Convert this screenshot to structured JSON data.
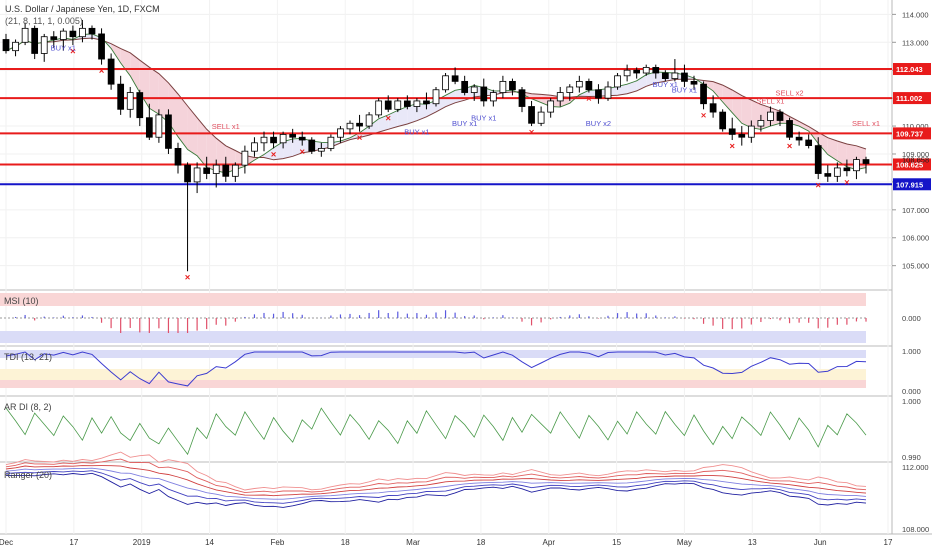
{
  "chart_data": {
    "type": "candlestick",
    "title": "U.S. Dollar / Japanese Yen, 1D, FXCM",
    "subtitle": "(21, 8, 11, 1, 0.005)",
    "x_ticks": [
      "Dec",
      "17",
      "2019",
      "14",
      "Feb",
      "18",
      "Mar",
      "18",
      "Apr",
      "15",
      "May",
      "13",
      "Jun",
      "17"
    ],
    "y_ticks": [
      "114.000",
      "113.000",
      "112.000",
      "111.000",
      "110.000",
      "109.000",
      "108.000",
      "107.000",
      "106.000",
      "105.000"
    ],
    "ylim": [
      104.2,
      114.3
    ],
    "candles": [
      [
        113.1,
        113.3,
        112.6,
        112.7
      ],
      [
        112.7,
        113.1,
        112.5,
        113.0
      ],
      [
        113.0,
        113.7,
        112.9,
        113.5
      ],
      [
        113.5,
        113.6,
        112.4,
        112.6
      ],
      [
        112.6,
        113.3,
        112.3,
        113.2
      ],
      [
        113.2,
        113.4,
        112.8,
        113.1
      ],
      [
        113.1,
        113.5,
        112.7,
        113.4
      ],
      [
        113.4,
        113.6,
        112.9,
        113.2
      ],
      [
        113.2,
        113.8,
        113.0,
        113.5
      ],
      [
        113.5,
        113.6,
        113.1,
        113.3
      ],
      [
        113.3,
        113.5,
        112.2,
        112.4
      ],
      [
        112.4,
        112.6,
        111.3,
        111.5
      ],
      [
        111.5,
        111.8,
        110.4,
        110.6
      ],
      [
        110.6,
        111.4,
        110.3,
        111.2
      ],
      [
        111.2,
        111.3,
        110.0,
        110.3
      ],
      [
        110.3,
        110.8,
        109.5,
        109.6
      ],
      [
        109.6,
        110.6,
        109.4,
        110.4
      ],
      [
        110.4,
        110.6,
        109.0,
        109.2
      ],
      [
        109.2,
        109.4,
        108.3,
        108.6
      ],
      [
        108.6,
        108.7,
        104.8,
        108.0
      ],
      [
        108.0,
        108.7,
        107.6,
        108.5
      ],
      [
        108.5,
        108.9,
        108.1,
        108.3
      ],
      [
        108.3,
        108.8,
        107.8,
        108.6
      ],
      [
        108.6,
        108.9,
        108.0,
        108.2
      ],
      [
        108.2,
        108.7,
        108.0,
        108.6
      ],
      [
        108.6,
        109.3,
        108.3,
        109.1
      ],
      [
        109.1,
        109.6,
        108.9,
        109.4
      ],
      [
        109.4,
        109.8,
        109.1,
        109.6
      ],
      [
        109.6,
        109.8,
        109.2,
        109.4
      ],
      [
        109.4,
        109.8,
        109.2,
        109.7
      ],
      [
        109.7,
        109.9,
        109.4,
        109.6
      ],
      [
        109.6,
        109.8,
        109.3,
        109.5
      ],
      [
        109.5,
        109.6,
        109.0,
        109.1
      ],
      [
        109.1,
        109.4,
        108.9,
        109.2
      ],
      [
        109.2,
        109.7,
        109.1,
        109.6
      ],
      [
        109.6,
        110.0,
        109.4,
        109.9
      ],
      [
        109.9,
        110.2,
        109.7,
        110.1
      ],
      [
        110.1,
        110.4,
        109.8,
        110.0
      ],
      [
        110.0,
        110.5,
        109.9,
        110.4
      ],
      [
        110.4,
        111.0,
        110.3,
        110.9
      ],
      [
        110.9,
        111.1,
        110.5,
        110.6
      ],
      [
        110.6,
        111.0,
        110.5,
        110.9
      ],
      [
        110.9,
        111.1,
        110.6,
        110.7
      ],
      [
        110.7,
        111.0,
        110.5,
        110.9
      ],
      [
        110.9,
        111.2,
        110.6,
        110.8
      ],
      [
        110.8,
        111.4,
        110.7,
        111.3
      ],
      [
        111.3,
        111.9,
        111.2,
        111.8
      ],
      [
        111.8,
        112.1,
        111.5,
        111.6
      ],
      [
        111.6,
        111.8,
        111.1,
        111.2
      ],
      [
        111.2,
        111.5,
        110.9,
        111.4
      ],
      [
        111.4,
        111.7,
        110.7,
        110.9
      ],
      [
        110.9,
        111.3,
        110.7,
        111.2
      ],
      [
        111.2,
        111.8,
        111.0,
        111.6
      ],
      [
        111.6,
        111.7,
        111.1,
        111.3
      ],
      [
        111.3,
        111.4,
        110.5,
        110.7
      ],
      [
        110.7,
        110.9,
        110.0,
        110.1
      ],
      [
        110.1,
        110.7,
        110.0,
        110.5
      ],
      [
        110.5,
        111.0,
        110.3,
        110.9
      ],
      [
        110.9,
        111.4,
        110.7,
        111.2
      ],
      [
        111.2,
        111.5,
        110.9,
        111.4
      ],
      [
        111.4,
        111.8,
        111.2,
        111.6
      ],
      [
        111.6,
        111.7,
        111.2,
        111.3
      ],
      [
        111.3,
        111.5,
        110.8,
        111.0
      ],
      [
        111.0,
        111.6,
        110.9,
        111.4
      ],
      [
        111.4,
        111.9,
        111.3,
        111.8
      ],
      [
        111.8,
        112.2,
        111.6,
        112.0
      ],
      [
        112.0,
        112.1,
        111.7,
        111.9
      ],
      [
        111.9,
        112.2,
        111.8,
        112.1
      ],
      [
        112.1,
        112.2,
        111.7,
        111.9
      ],
      [
        111.9,
        112.0,
        111.6,
        111.7
      ],
      [
        111.7,
        112.4,
        111.6,
        111.9
      ],
      [
        111.9,
        112.2,
        111.4,
        111.6
      ],
      [
        111.6,
        111.8,
        111.3,
        111.5
      ],
      [
        111.5,
        111.6,
        110.6,
        110.8
      ],
      [
        110.8,
        111.1,
        110.3,
        110.5
      ],
      [
        110.5,
        110.6,
        109.8,
        109.9
      ],
      [
        109.9,
        110.3,
        109.5,
        109.7
      ],
      [
        109.7,
        110.0,
        109.3,
        109.6
      ],
      [
        109.6,
        110.2,
        109.4,
        110.0
      ],
      [
        110.0,
        110.4,
        109.8,
        110.2
      ],
      [
        110.2,
        110.7,
        110.0,
        110.5
      ],
      [
        110.5,
        110.6,
        110.0,
        110.2
      ],
      [
        110.2,
        110.3,
        109.5,
        109.6
      ],
      [
        109.6,
        109.8,
        109.3,
        109.5
      ],
      [
        109.5,
        109.7,
        109.2,
        109.3
      ],
      [
        109.3,
        109.6,
        108.1,
        108.3
      ],
      [
        108.3,
        108.6,
        108.0,
        108.2
      ],
      [
        108.2,
        108.7,
        108.0,
        108.5
      ],
      [
        108.5,
        108.8,
        108.2,
        108.4
      ],
      [
        108.4,
        108.9,
        108.1,
        108.8
      ],
      [
        108.8,
        108.9,
        108.3,
        108.66
      ]
    ],
    "lines": [
      {
        "price": "112.043",
        "color": "#e81b1b"
      },
      {
        "price": "111.002",
        "color": "#e81b1b"
      },
      {
        "price": "109.737",
        "color": "#e81b1b"
      },
      {
        "price": "108.625",
        "color": "#e81b1b"
      },
      {
        "price": "107.915",
        "color": "#1414c8"
      }
    ],
    "last_price": "108.658",
    "annotations": [
      {
        "text": "SELL x1",
        "i": 23,
        "y": 109.9
      },
      {
        "text": "SELL x2",
        "i": 82,
        "y": 111.1
      },
      {
        "text": "SELL x1",
        "i": 80,
        "y": 110.8
      },
      {
        "text": "SELL x1",
        "i": 90,
        "y": 110.0
      },
      {
        "text": "BUY x1",
        "i": 43,
        "y": 109.7
      },
      {
        "text": "BUY x1",
        "i": 48,
        "y": 110.0
      },
      {
        "text": "BUY x1",
        "i": 50,
        "y": 110.2
      },
      {
        "text": "BUY x2",
        "i": 62,
        "y": 110.0
      },
      {
        "text": "BUY x1",
        "i": 69,
        "y": 111.4
      },
      {
        "text": "BUY x1",
        "i": 71,
        "y": 111.2
      },
      {
        "text": "BUY x1",
        "i": 6,
        "y": 112.7
      }
    ],
    "panels": [
      {
        "name": "MSI (10)",
        "ticks": [
          "0.000"
        ]
      },
      {
        "name": "TDI (13, 21)",
        "ticks": [
          "1.000",
          "0.000"
        ]
      },
      {
        "name": "AR DI (8, 2)",
        "ticks": [
          "1.000",
          "0.990"
        ]
      },
      {
        "name": "Ranger (20)",
        "ticks": [
          "112.000",
          "108.000"
        ]
      }
    ]
  },
  "colors": {
    "up": "#ffffff",
    "down": "#000000",
    "bull_fill": "#e9e8f8",
    "bear_fill": "#f5d3da",
    "cross": "#e81b1b"
  }
}
